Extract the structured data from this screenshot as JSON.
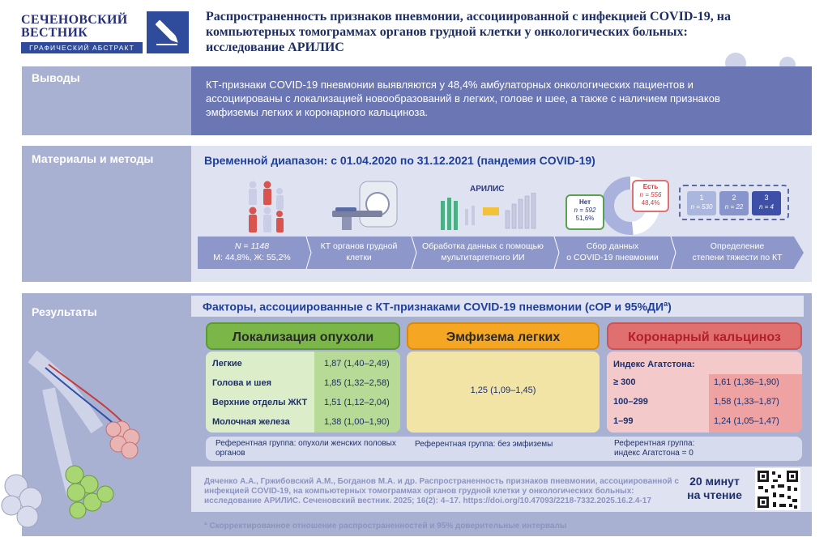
{
  "header": {
    "journal_name_line1": "СЕЧЕНОВСКИЙ",
    "journal_name_line2": "ВЕСТНИК",
    "journal_subtitle": "ГРАФИЧЕСКИЙ АБСТРАКТ",
    "title": "Распространенность признаков пневмонии, ассоциированной с инфекцией COVID-19, на компьютерных томограммах органов грудной клетки у онкологических больных: исследование АРИЛИС"
  },
  "conclusions": {
    "label": "Выводы",
    "text": "КТ-признаки COVID-19 пневмонии выявляются у 48,4% амбулаторных  онкологических пациентов и ассоциированы с локализацией новообразований в легких, голове и шее, а также с наличием признаков эмфиземы легких и коронарного кальциноза."
  },
  "methods": {
    "label": "Материалы и методы",
    "period": "Временной диапазон: с 01.04.2020 по 31.12.2021 (пандемия COVID-19)",
    "ai_label": "АРИЛИС",
    "donut": {
      "no_label": "Нет",
      "no_n": "n = 592",
      "no_pct": "51,6%",
      "no_value": 51.6,
      "yes_label": "Есть",
      "yes_n": "n = 556",
      "yes_pct": "48,4%",
      "yes_value": 48.4
    },
    "severity": [
      {
        "grade": "1",
        "n": "n = 530"
      },
      {
        "grade": "2",
        "n": "n = 22"
      },
      {
        "grade": "3",
        "n": "n = 4"
      }
    ],
    "steps": [
      {
        "line1": "N = 1148",
        "line2": "М: 44,8%, Ж: 55,2%"
      },
      {
        "line1": "КТ органов грудной",
        "line2": "клетки"
      },
      {
        "line1": "Обработка данных с помощью",
        "line2": "мультитаргетного ИИ"
      },
      {
        "line1": "Сбор данных",
        "line2": "о COVID-19 пневмонии"
      },
      {
        "line1": "Определение",
        "line2": "степени тяжести по КТ"
      }
    ]
  },
  "results": {
    "label": "Результаты",
    "heading": "Факторы, ассоциированные с КТ-признаками COVID-19 пневмонии (сОР и 95%ДИ",
    "heading_sup": "а",
    "heading_end": ")",
    "tumor": {
      "title": "Локализация опухоли",
      "rows": [
        {
          "label": "Легкие",
          "value": "1,87 (1,40–2,49)"
        },
        {
          "label": "Голова и шея",
          "value": "1,85 (1,32–2,58)"
        },
        {
          "label": "Верхние отделы ЖКТ",
          "value": "1,51 (1,12–2,04)"
        },
        {
          "label": "Молочная железа",
          "value": "1,38 (1,00–1,90)"
        }
      ],
      "reference": "Референтная группа: опухоли женских половых органов"
    },
    "emphysema": {
      "title": "Эмфизема легких",
      "value": "1,25 (1,09–1,45)",
      "reference": "Референтная группа: без эмфиземы"
    },
    "calcinosis": {
      "title": "Коронарный кальциноз",
      "index_label": "Индекс Агатстона:",
      "rows": [
        {
          "label": "≥ 300",
          "value": "1,61 (1,36–1,90)"
        },
        {
          "label": "100–299",
          "value": "1,58 (1,33–1,87)"
        },
        {
          "label": "1–99",
          "value": "1,24 (1,05–1,47)"
        }
      ],
      "reference": "Референтная группа: индекс Агатстона = 0"
    },
    "citation": "Дяченко А.А., Гржибовский А.М., Богданов М.А. и др. Распространенность признаков пневмонии, ассоциированной с инфекцией COVID-19, на компьютерных томограммах органов грудной клетки у онкологических больных: исследование АРИЛИС. Сеченовский вестник. 2025; 16(2): 4–17. https://doi.org/10.47093/2218-7332.2025.16.2.4-17",
    "reading_time_line1": "20 минут",
    "reading_time_line2": "на чтение",
    "footnote": "ª Скорректированное отношение распространенностей и 95% доверительные интервалы"
  },
  "colors": {
    "panel": "#a9b1d3",
    "panel_dark": "#6b77b5",
    "green": "#7ab648",
    "orange": "#f5a623",
    "red": "#e07070"
  }
}
